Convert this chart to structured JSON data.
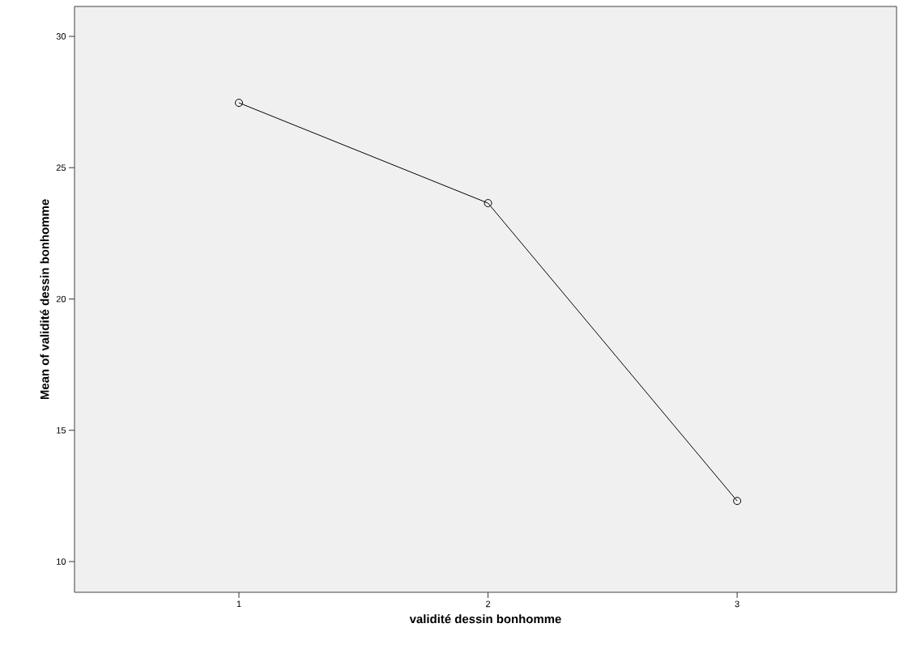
{
  "chart_data": {
    "type": "line",
    "xlabel": "validité dessin bonhomme",
    "ylabel": "Mean of validité dessin bonhomme",
    "categories": [
      "1",
      "2",
      "3"
    ],
    "series": [
      {
        "color": "#000000",
        "values": [
          27.47,
          23.65,
          12.31
        ]
      }
    ],
    "ylim": [
      8.83,
      31.14
    ],
    "yticks": [
      10,
      15,
      20,
      25,
      30
    ],
    "marker": "circle",
    "line_style": "solid",
    "grid": false
  }
}
